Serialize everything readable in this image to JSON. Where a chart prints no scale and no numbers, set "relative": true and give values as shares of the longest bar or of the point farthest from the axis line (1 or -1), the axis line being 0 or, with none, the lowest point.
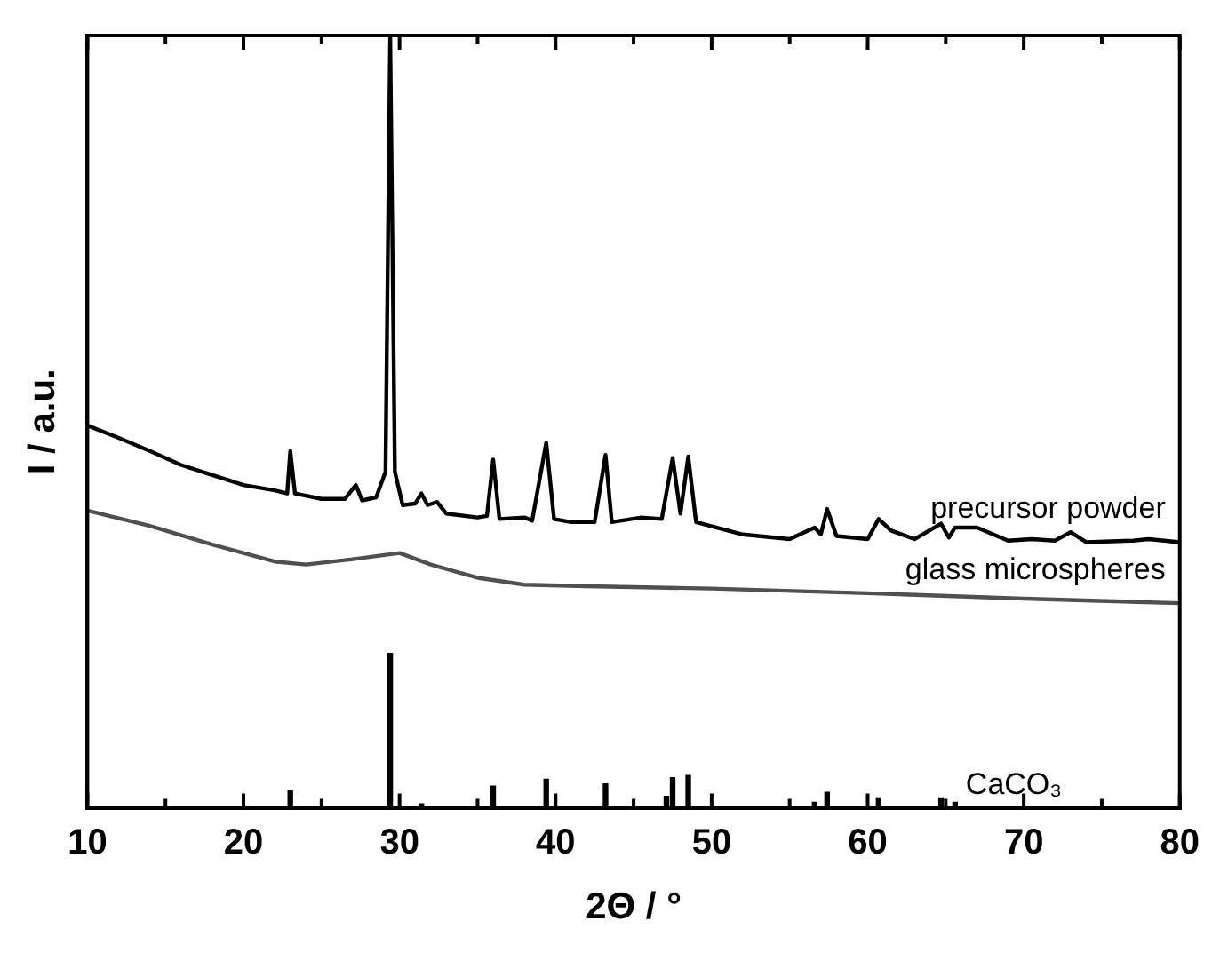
{
  "chart_data": {
    "type": "line",
    "xlabel": "2Θ / °",
    "ylabel": "I / a.u.",
    "relative": true,
    "legend": false,
    "grid": false,
    "marker": "none",
    "xlim": [
      10,
      80
    ],
    "xticks": [
      10,
      {
        "value": 15,
        "label": null
      },
      20,
      {
        "value": 25,
        "label": null
      },
      30,
      {
        "value": 35,
        "label": null
      },
      40,
      {
        "value": 45,
        "label": null
      },
      50,
      {
        "value": 55,
        "label": null
      },
      60,
      {
        "value": 65,
        "label": null
      },
      70,
      {
        "value": 75,
        "label": null
      },
      80
    ],
    "series": [
      {
        "name": "precursor powder",
        "color": "#000000",
        "x": [
          10,
          12,
          14,
          16,
          18,
          20,
          22,
          22.8,
          23.0,
          23.3,
          25,
          26.5,
          27.2,
          27.6,
          28.5,
          29.1,
          29.4,
          29.7,
          30.2,
          31.0,
          31.4,
          31.8,
          32.4,
          33,
          35,
          35.6,
          36.0,
          36.4,
          38,
          38.5,
          39.4,
          39.9,
          41,
          42.5,
          43.2,
          43.6,
          45.5,
          46.8,
          47.5,
          48.0,
          48.5,
          49.0,
          52,
          55,
          56.6,
          57.0,
          57.4,
          58,
          60,
          60.7,
          61.5,
          63,
          64.7,
          65.2,
          65.6,
          67,
          69,
          70.5,
          72,
          73,
          74,
          77,
          78,
          80
        ],
        "values": [
          0.495,
          0.479,
          0.462,
          0.444,
          0.431,
          0.418,
          0.411,
          0.407,
          0.462,
          0.407,
          0.4,
          0.4,
          0.418,
          0.398,
          0.402,
          0.435,
          1.0,
          0.435,
          0.392,
          0.394,
          0.407,
          0.392,
          0.396,
          0.381,
          0.376,
          0.378,
          0.451,
          0.374,
          0.376,
          0.372,
          0.473,
          0.374,
          0.37,
          0.37,
          0.457,
          0.37,
          0.376,
          0.374,
          0.453,
          0.381,
          0.455,
          0.37,
          0.354,
          0.348,
          0.363,
          0.354,
          0.387,
          0.352,
          0.348,
          0.374,
          0.359,
          0.348,
          0.368,
          0.35,
          0.363,
          0.363,
          0.346,
          0.348,
          0.346,
          0.357,
          0.344,
          0.346,
          0.348,
          0.344
        ]
      },
      {
        "name": "glass microspheres",
        "color": "#505050",
        "x": [
          10,
          14,
          18,
          22,
          24,
          27,
          30,
          32,
          35,
          38,
          42,
          50,
          60,
          70,
          80
        ],
        "values": [
          0.385,
          0.365,
          0.341,
          0.319,
          0.315,
          0.322,
          0.33,
          0.315,
          0.298,
          0.289,
          0.287,
          0.284,
          0.278,
          0.271,
          0.265
        ]
      },
      {
        "name": "CaCO₃",
        "type": "bar",
        "color": "#000000",
        "x": [
          23.0,
          29.4,
          31.4,
          36.0,
          39.4,
          43.2,
          47.1,
          47.5,
          48.5,
          56.6,
          57.4,
          60.7,
          64.7,
          65.6
        ],
        "values": [
          0.022,
          0.2,
          0.005,
          0.028,
          0.037,
          0.031,
          0.015,
          0.039,
          0.042,
          0.007,
          0.02,
          0.013,
          0.013,
          0.007
        ]
      }
    ]
  }
}
